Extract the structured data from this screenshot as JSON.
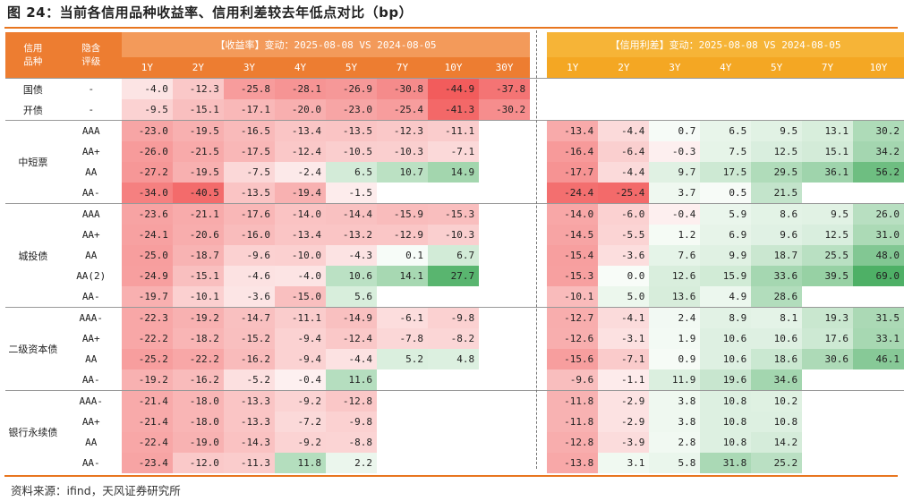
{
  "title": "图 24：当前各信用品种收益率、信用利差较去年低点对比（bp）",
  "source": "资料来源：ifind，天风证券研究所",
  "header": {
    "col1_line1": "信用",
    "col1_line2": "品种",
    "col2_line1": "隐含",
    "col2_line2": "评级",
    "yield_title": "【收益率】变动：2025-08-08 VS 2024-08-05",
    "spread_title": "【信用利差】变动：2025-08-08 VS 2024-08-05",
    "yield_tenors": [
      "1Y",
      "2Y",
      "3Y",
      "4Y",
      "5Y",
      "7Y",
      "10Y",
      "30Y"
    ],
    "spread_tenors": [
      "1Y",
      "2Y",
      "3Y",
      "4Y",
      "5Y",
      "7Y",
      "10Y"
    ]
  },
  "colors": {
    "accent": "#ed7d31",
    "accent_light": "#f6b437",
    "negative": "#f25c5c",
    "positive": "#4caf64"
  },
  "rows": [
    {
      "cat": "国债",
      "rating": "-",
      "yield": [
        "-4.0",
        "-12.3",
        "-25.8",
        "-28.1",
        "-26.9",
        "-30.8",
        "-44.9",
        "-37.8"
      ],
      "spread": [
        "",
        "",
        "",
        "",
        "",
        "",
        ""
      ]
    },
    {
      "cat": "开债",
      "rating": "-",
      "yield": [
        "-9.5",
        "-15.1",
        "-17.1",
        "-20.0",
        "-23.0",
        "-25.4",
        "-41.3",
        "-30.2"
      ],
      "spread": [
        "",
        "",
        "",
        "",
        "",
        "",
        ""
      ]
    },
    {
      "cat": "中短票",
      "rating": "AAA",
      "yield": [
        "-23.0",
        "-19.5",
        "-16.5",
        "-13.4",
        "-13.5",
        "-12.3",
        "-11.1",
        ""
      ],
      "spread": [
        "-13.4",
        "-4.4",
        "0.7",
        "6.5",
        "9.5",
        "13.1",
        "30.2"
      ]
    },
    {
      "cat": "",
      "rating": "AA+",
      "yield": [
        "-26.0",
        "-21.5",
        "-17.5",
        "-12.4",
        "-10.5",
        "-10.3",
        "-7.1",
        ""
      ],
      "spread": [
        "-16.4",
        "-6.4",
        "-0.3",
        "7.5",
        "12.5",
        "15.1",
        "34.2"
      ]
    },
    {
      "cat": "",
      "rating": "AA",
      "yield": [
        "-27.2",
        "-19.5",
        "-7.5",
        "-2.4",
        "6.5",
        "10.7",
        "14.9",
        ""
      ],
      "spread": [
        "-17.7",
        "-4.4",
        "9.7",
        "17.5",
        "29.5",
        "36.1",
        "56.2"
      ]
    },
    {
      "cat": "",
      "rating": "AA-",
      "yield": [
        "-34.0",
        "-40.5",
        "-13.5",
        "-19.4",
        "-1.5",
        "",
        "",
        ""
      ],
      "spread": [
        "-24.4",
        "-25.4",
        "3.7",
        "0.5",
        "21.5",
        "",
        ""
      ]
    },
    {
      "cat": "城投债",
      "rating": "AAA",
      "yield": [
        "-23.6",
        "-21.1",
        "-17.6",
        "-14.0",
        "-14.4",
        "-15.9",
        "-15.3",
        ""
      ],
      "spread": [
        "-14.0",
        "-6.0",
        "-0.4",
        "5.9",
        "8.6",
        "9.5",
        "26.0"
      ]
    },
    {
      "cat": "",
      "rating": "AA+",
      "yield": [
        "-24.1",
        "-20.6",
        "-16.0",
        "-13.4",
        "-13.2",
        "-12.9",
        "-10.3",
        ""
      ],
      "spread": [
        "-14.5",
        "-5.5",
        "1.2",
        "6.9",
        "9.6",
        "12.5",
        "31.0"
      ]
    },
    {
      "cat": "",
      "rating": "AA",
      "yield": [
        "-25.0",
        "-18.7",
        "-9.6",
        "-10.0",
        "-4.3",
        "0.1",
        "6.7",
        ""
      ],
      "spread": [
        "-15.4",
        "-3.6",
        "7.6",
        "9.9",
        "18.7",
        "25.5",
        "48.0"
      ]
    },
    {
      "cat": "",
      "rating": "AA(2)",
      "yield": [
        "-24.9",
        "-15.1",
        "-4.6",
        "-4.0",
        "10.6",
        "14.1",
        "27.7",
        ""
      ],
      "spread": [
        "-15.3",
        "0.0",
        "12.6",
        "15.9",
        "33.6",
        "39.5",
        "69.0"
      ]
    },
    {
      "cat": "",
      "rating": "AA-",
      "yield": [
        "-19.7",
        "-10.1",
        "-3.6",
        "-15.0",
        "5.6",
        "",
        "",
        ""
      ],
      "spread": [
        "-10.1",
        "5.0",
        "13.6",
        "4.9",
        "28.6",
        "",
        ""
      ]
    },
    {
      "cat": "二级资本债",
      "rating": "AAA-",
      "yield": [
        "-22.3",
        "-19.2",
        "-14.7",
        "-11.1",
        "-14.9",
        "-6.1",
        "-9.8",
        ""
      ],
      "spread": [
        "-12.7",
        "-4.1",
        "2.4",
        "8.9",
        "8.1",
        "19.3",
        "31.5"
      ]
    },
    {
      "cat": "",
      "rating": "AA+",
      "yield": [
        "-22.2",
        "-18.2",
        "-15.2",
        "-9.4",
        "-12.4",
        "-7.8",
        "-8.2",
        ""
      ],
      "spread": [
        "-12.6",
        "-3.1",
        "1.9",
        "10.6",
        "10.6",
        "17.6",
        "33.1"
      ]
    },
    {
      "cat": "",
      "rating": "AA",
      "yield": [
        "-25.2",
        "-22.2",
        "-16.2",
        "-9.4",
        "-4.4",
        "5.2",
        "4.8",
        ""
      ],
      "spread": [
        "-15.6",
        "-7.1",
        "0.9",
        "10.6",
        "18.6",
        "30.6",
        "46.1"
      ]
    },
    {
      "cat": "",
      "rating": "AA-",
      "yield": [
        "-19.2",
        "-16.2",
        "-5.2",
        "-0.4",
        "11.6",
        "",
        "",
        ""
      ],
      "spread": [
        "-9.6",
        "-1.1",
        "11.9",
        "19.6",
        "34.6",
        "",
        ""
      ]
    },
    {
      "cat": "银行永续债",
      "rating": "AAA-",
      "yield": [
        "-21.4",
        "-18.0",
        "-13.3",
        "-9.2",
        "-12.8",
        "",
        "",
        ""
      ],
      "spread": [
        "-11.8",
        "-2.9",
        "3.8",
        "10.8",
        "10.2",
        "",
        ""
      ]
    },
    {
      "cat": "",
      "rating": "AA+",
      "yield": [
        "-21.4",
        "-18.0",
        "-13.3",
        "-7.2",
        "-9.8",
        "",
        "",
        ""
      ],
      "spread": [
        "-11.8",
        "-2.9",
        "3.8",
        "10.8",
        "10.8",
        "",
        ""
      ]
    },
    {
      "cat": "",
      "rating": "AA",
      "yield": [
        "-22.4",
        "-19.0",
        "-14.3",
        "-9.2",
        "-8.8",
        "",
        "",
        ""
      ],
      "spread": [
        "-12.8",
        "-3.9",
        "2.8",
        "10.8",
        "14.2",
        "",
        ""
      ]
    },
    {
      "cat": "",
      "rating": "AA-",
      "yield": [
        "-23.4",
        "-12.0",
        "-11.3",
        "11.8",
        "2.2",
        "",
        "",
        ""
      ],
      "spread": [
        "-13.8",
        "3.1",
        "5.8",
        "31.8",
        "25.2",
        "",
        ""
      ]
    }
  ]
}
